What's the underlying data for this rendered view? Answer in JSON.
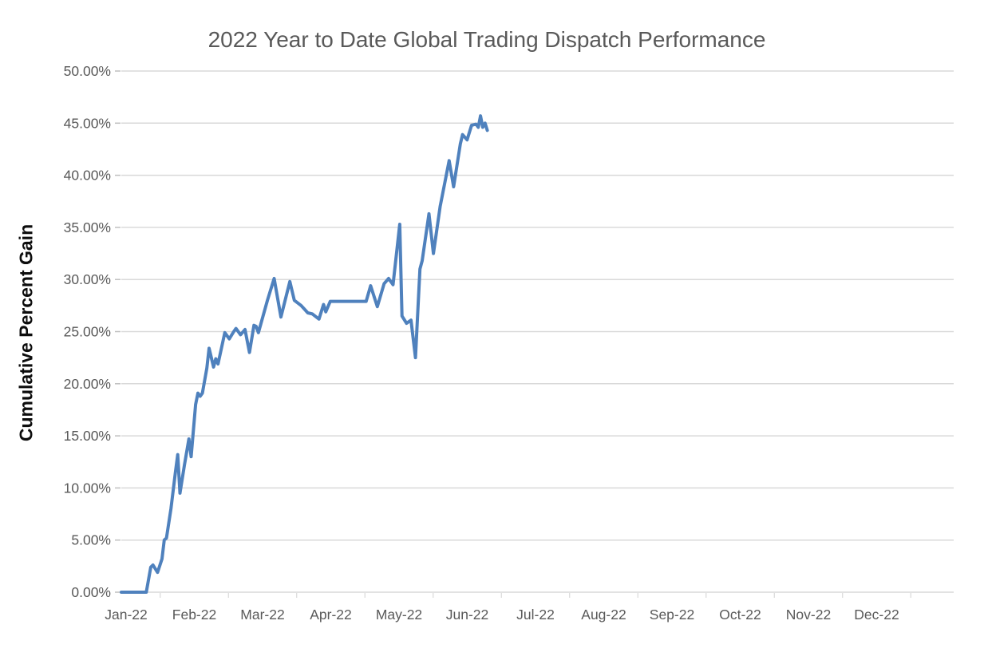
{
  "page": {
    "background_color": "#ffffff"
  },
  "chart_data": {
    "type": "line",
    "title": "2022 Year to Date Global Trading Dispatch Performance",
    "xlabel": "",
    "ylabel": "Cumulative Percent Gain",
    "legend": "none",
    "grid": "horizontal",
    "ylim": [
      0,
      50
    ],
    "y_ticks": [
      0,
      5,
      10,
      15,
      20,
      25,
      30,
      35,
      40,
      45,
      50
    ],
    "y_tick_labels": [
      "0.00%",
      "5.00%",
      "10.00%",
      "15.00%",
      "20.00%",
      "25.00%",
      "30.00%",
      "35.00%",
      "40.00%",
      "45.00%",
      "50.00%"
    ],
    "x_tick_labels": [
      "Jan-22",
      "Feb-22",
      "Mar-22",
      "Apr-22",
      "May-22",
      "Jun-22",
      "Jul-22",
      "Aug-22",
      "Sep-22",
      "Oct-22",
      "Nov-22",
      "Dec-22"
    ],
    "colors": {
      "line": "#4F81BD",
      "grid": "#D9D9D9",
      "tick": "#BFBFBF",
      "tick_text": "#595959",
      "title_text": "#595959",
      "axis_title_text": "#0d0d0d"
    },
    "line_width": 4,
    "series": [
      {
        "name": "Cumulative Percent Gain",
        "unit": "%",
        "points": [
          [
            "2022-01-01",
            0.0
          ],
          [
            "2022-01-10",
            0.0
          ],
          [
            "2022-01-12",
            2.4
          ],
          [
            "2022-01-13",
            2.6
          ],
          [
            "2022-01-15",
            1.9
          ],
          [
            "2022-01-17",
            3.2
          ],
          [
            "2022-01-18",
            5.0
          ],
          [
            "2022-01-19",
            5.2
          ],
          [
            "2022-01-21",
            8.0
          ],
          [
            "2022-01-23",
            11.5
          ],
          [
            "2022-01-24",
            13.2
          ],
          [
            "2022-01-25",
            9.5
          ],
          [
            "2022-01-27",
            12.2
          ],
          [
            "2022-01-29",
            14.7
          ],
          [
            "2022-01-30",
            13.0
          ],
          [
            "2022-02-01",
            18.0
          ],
          [
            "2022-02-02",
            19.1
          ],
          [
            "2022-02-03",
            18.8
          ],
          [
            "2022-02-04",
            19.1
          ],
          [
            "2022-02-06",
            21.5
          ],
          [
            "2022-02-07",
            23.4
          ],
          [
            "2022-02-09",
            21.6
          ],
          [
            "2022-02-10",
            22.4
          ],
          [
            "2022-02-11",
            21.9
          ],
          [
            "2022-02-14",
            24.9
          ],
          [
            "2022-02-16",
            24.3
          ],
          [
            "2022-02-18",
            25.0
          ],
          [
            "2022-02-19",
            25.3
          ],
          [
            "2022-02-21",
            24.7
          ],
          [
            "2022-02-23",
            25.2
          ],
          [
            "2022-02-25",
            23.0
          ],
          [
            "2022-02-27",
            25.6
          ],
          [
            "2022-02-28",
            25.5
          ],
          [
            "2022-03-01",
            24.9
          ],
          [
            "2022-03-05",
            28.0
          ],
          [
            "2022-03-08",
            30.1
          ],
          [
            "2022-03-11",
            26.4
          ],
          [
            "2022-03-15",
            29.8
          ],
          [
            "2022-03-17",
            28.0
          ],
          [
            "2022-03-20",
            27.5
          ],
          [
            "2022-03-23",
            26.8
          ],
          [
            "2022-03-25",
            26.7
          ],
          [
            "2022-03-28",
            26.2
          ],
          [
            "2022-03-30",
            27.6
          ],
          [
            "2022-03-31",
            26.9
          ],
          [
            "2022-04-02",
            27.9
          ],
          [
            "2022-04-18",
            27.9
          ],
          [
            "2022-04-20",
            29.4
          ],
          [
            "2022-04-23",
            27.4
          ],
          [
            "2022-04-26",
            29.6
          ],
          [
            "2022-04-28",
            30.1
          ],
          [
            "2022-04-30",
            29.5
          ],
          [
            "2022-05-03",
            35.3
          ],
          [
            "2022-05-04",
            26.5
          ],
          [
            "2022-05-06",
            25.8
          ],
          [
            "2022-05-08",
            26.1
          ],
          [
            "2022-05-10",
            22.5
          ],
          [
            "2022-05-12",
            31.0
          ],
          [
            "2022-05-13",
            31.8
          ],
          [
            "2022-05-16",
            36.3
          ],
          [
            "2022-05-18",
            32.5
          ],
          [
            "2022-05-21",
            37.0
          ],
          [
            "2022-05-25",
            41.4
          ],
          [
            "2022-05-27",
            38.9
          ],
          [
            "2022-05-30",
            43.0
          ],
          [
            "2022-05-31",
            43.9
          ],
          [
            "2022-06-02",
            43.4
          ],
          [
            "2022-06-04",
            44.8
          ],
          [
            "2022-06-06",
            44.9
          ],
          [
            "2022-06-07",
            44.6
          ],
          [
            "2022-06-08",
            45.7
          ],
          [
            "2022-06-09",
            44.6
          ],
          [
            "2022-06-10",
            45.0
          ],
          [
            "2022-06-11",
            44.3
          ]
        ]
      }
    ]
  }
}
